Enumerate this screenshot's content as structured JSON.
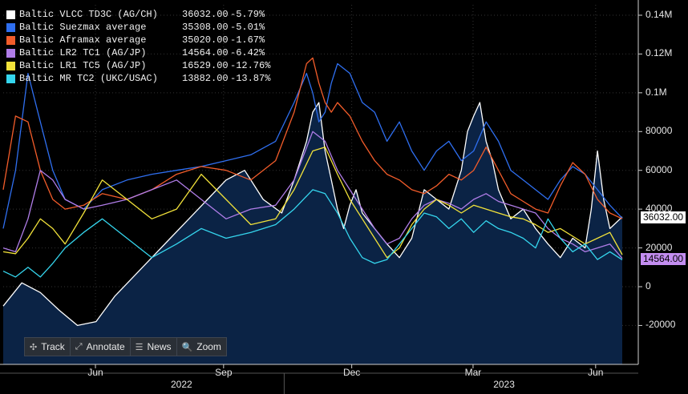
{
  "chart_data": {
    "type": "line",
    "title": "",
    "xlabel": "",
    "ylabel": "",
    "ylim": [
      -35000,
      150000
    ],
    "y_ticks": [
      {
        "value": 140000,
        "label": "0.14M"
      },
      {
        "value": 120000,
        "label": "0.12M"
      },
      {
        "value": 100000,
        "label": "0.1M"
      },
      {
        "value": 80000,
        "label": "80000"
      },
      {
        "value": 60000,
        "label": "60000"
      },
      {
        "value": 40000,
        "label": "40000"
      },
      {
        "value": 20000,
        "label": "20000"
      },
      {
        "value": 0,
        "label": "0"
      },
      {
        "value": -20000,
        "label": "-20000"
      }
    ],
    "x_ticks": [
      {
        "t": 0.149,
        "label": "Jun"
      },
      {
        "t": 0.356,
        "label": "Sep"
      },
      {
        "t": 0.563,
        "label": "Dec"
      },
      {
        "t": 0.759,
        "label": "Mar"
      },
      {
        "t": 0.957,
        "label": "Jun"
      }
    ],
    "year_labels": [
      {
        "t": 0.288,
        "label": "2022"
      },
      {
        "t": 0.809,
        "label": "2023"
      }
    ],
    "last_value_tags": [
      {
        "value": 36032.0,
        "label": "36032.00",
        "color": "#ffffff"
      },
      {
        "value": 14564.0,
        "label": "14564.00",
        "color": "#c38df0"
      }
    ],
    "series": [
      {
        "name": "Baltic VLCC TD3C (AG/CH)",
        "last": "36032.00",
        "change": "-5.79%",
        "color": "#ffffff",
        "fill": true,
        "x": [
          0,
          0.03,
          0.06,
          0.09,
          0.12,
          0.15,
          0.18,
          0.21,
          0.24,
          0.27,
          0.3,
          0.33,
          0.36,
          0.39,
          0.42,
          0.45,
          0.47,
          0.49,
          0.5,
          0.51,
          0.52,
          0.53,
          0.54,
          0.55,
          0.56,
          0.57,
          0.58,
          0.6,
          0.62,
          0.64,
          0.66,
          0.68,
          0.7,
          0.72,
          0.74,
          0.75,
          0.76,
          0.77,
          0.78,
          0.79,
          0.8,
          0.82,
          0.84,
          0.86,
          0.88,
          0.9,
          0.92,
          0.94,
          0.95,
          0.96,
          0.97,
          0.98,
          1
        ],
        "y": [
          -10000,
          2000,
          -3000,
          -12000,
          -20000,
          -18000,
          -5000,
          5000,
          15000,
          25000,
          35000,
          45000,
          55000,
          60000,
          45000,
          38000,
          55000,
          75000,
          90000,
          95000,
          70000,
          55000,
          40000,
          30000,
          42000,
          50000,
          38000,
          30000,
          22000,
          15000,
          25000,
          50000,
          45000,
          40000,
          60000,
          80000,
          88000,
          95000,
          75000,
          65000,
          50000,
          35000,
          40000,
          30000,
          22000,
          15000,
          25000,
          20000,
          40000,
          70000,
          45000,
          30000,
          36032
        ]
      },
      {
        "name": "Baltic Suezmax average",
        "last": "35308.00",
        "change": "-5.01%",
        "color": "#2f6ff0",
        "fill": false,
        "x": [
          0,
          0.02,
          0.04,
          0.06,
          0.08,
          0.1,
          0.13,
          0.16,
          0.2,
          0.24,
          0.28,
          0.32,
          0.36,
          0.4,
          0.44,
          0.47,
          0.49,
          0.5,
          0.51,
          0.52,
          0.53,
          0.54,
          0.56,
          0.58,
          0.6,
          0.62,
          0.64,
          0.66,
          0.68,
          0.7,
          0.72,
          0.74,
          0.76,
          0.78,
          0.8,
          0.82,
          0.84,
          0.86,
          0.88,
          0.9,
          0.92,
          0.94,
          0.96,
          0.98,
          1
        ],
        "y": [
          30000,
          60000,
          110000,
          85000,
          60000,
          45000,
          40000,
          50000,
          55000,
          58000,
          60000,
          62000,
          65000,
          68000,
          75000,
          95000,
          110000,
          100000,
          85000,
          90000,
          105000,
          115000,
          110000,
          95000,
          90000,
          75000,
          85000,
          70000,
          60000,
          70000,
          75000,
          65000,
          70000,
          85000,
          75000,
          60000,
          55000,
          50000,
          45000,
          55000,
          62000,
          58000,
          50000,
          42000,
          35308
        ]
      },
      {
        "name": "Baltic Aframax average",
        "last": "35020.00",
        "change": "-1.67%",
        "color": "#f25c2a",
        "fill": false,
        "x": [
          0,
          0.02,
          0.04,
          0.06,
          0.08,
          0.1,
          0.13,
          0.16,
          0.2,
          0.24,
          0.28,
          0.32,
          0.36,
          0.4,
          0.44,
          0.47,
          0.49,
          0.5,
          0.51,
          0.52,
          0.53,
          0.54,
          0.56,
          0.58,
          0.6,
          0.62,
          0.64,
          0.66,
          0.68,
          0.7,
          0.72,
          0.74,
          0.76,
          0.78,
          0.8,
          0.82,
          0.84,
          0.86,
          0.88,
          0.9,
          0.92,
          0.94,
          0.96,
          0.98,
          1
        ],
        "y": [
          50000,
          88000,
          85000,
          60000,
          45000,
          40000,
          42000,
          48000,
          45000,
          50000,
          58000,
          62000,
          60000,
          55000,
          65000,
          90000,
          115000,
          118000,
          105000,
          95000,
          90000,
          95000,
          88000,
          75000,
          65000,
          58000,
          55000,
          50000,
          48000,
          52000,
          58000,
          55000,
          60000,
          72000,
          60000,
          48000,
          44000,
          40000,
          38000,
          52000,
          64000,
          58000,
          45000,
          38000,
          35020
        ]
      },
      {
        "name": "Baltic LR2 TC1 (AG/JP)",
        "last": "14564.00",
        "change": "-6.42%",
        "color": "#b07de8",
        "fill": false,
        "x": [
          0,
          0.02,
          0.04,
          0.06,
          0.08,
          0.1,
          0.13,
          0.16,
          0.2,
          0.24,
          0.28,
          0.32,
          0.36,
          0.4,
          0.44,
          0.47,
          0.5,
          0.52,
          0.54,
          0.56,
          0.58,
          0.6,
          0.62,
          0.64,
          0.66,
          0.68,
          0.7,
          0.72,
          0.74,
          0.76,
          0.78,
          0.8,
          0.82,
          0.84,
          0.86,
          0.88,
          0.9,
          0.92,
          0.94,
          0.96,
          0.98,
          1
        ],
        "y": [
          20000,
          18000,
          35000,
          60000,
          55000,
          45000,
          40000,
          42000,
          45000,
          50000,
          55000,
          45000,
          35000,
          40000,
          42000,
          55000,
          80000,
          75000,
          60000,
          50000,
          40000,
          30000,
          22000,
          25000,
          35000,
          42000,
          45000,
          43000,
          40000,
          45000,
          48000,
          44000,
          42000,
          40000,
          38000,
          30000,
          25000,
          22000,
          18000,
          20000,
          22000,
          14564
        ]
      },
      {
        "name": "Baltic LR1 TC5 (AG/JP)",
        "last": "16529.00",
        "change": "-12.76%",
        "color": "#f2e23a",
        "fill": false,
        "x": [
          0,
          0.02,
          0.04,
          0.06,
          0.08,
          0.1,
          0.13,
          0.16,
          0.2,
          0.24,
          0.28,
          0.32,
          0.36,
          0.4,
          0.44,
          0.47,
          0.5,
          0.52,
          0.54,
          0.56,
          0.58,
          0.6,
          0.62,
          0.64,
          0.66,
          0.68,
          0.7,
          0.72,
          0.74,
          0.76,
          0.78,
          0.8,
          0.82,
          0.84,
          0.86,
          0.88,
          0.9,
          0.92,
          0.94,
          0.96,
          0.98,
          1
        ],
        "y": [
          18000,
          17000,
          25000,
          35000,
          30000,
          22000,
          38000,
          55000,
          45000,
          35000,
          40000,
          58000,
          45000,
          32000,
          35000,
          50000,
          70000,
          72000,
          58000,
          45000,
          35000,
          25000,
          15000,
          20000,
          32000,
          40000,
          45000,
          42000,
          38000,
          42000,
          40000,
          38000,
          36000,
          35000,
          32000,
          28000,
          30000,
          26000,
          22000,
          25000,
          28000,
          16529
        ]
      },
      {
        "name": "Baltic MR TC2 (UKC/USAC)",
        "last": "13882.00",
        "change": "-13.87%",
        "color": "#35d6ee",
        "fill": false,
        "x": [
          0,
          0.02,
          0.04,
          0.06,
          0.08,
          0.1,
          0.13,
          0.16,
          0.2,
          0.24,
          0.28,
          0.32,
          0.36,
          0.4,
          0.44,
          0.47,
          0.5,
          0.52,
          0.54,
          0.56,
          0.58,
          0.6,
          0.62,
          0.64,
          0.66,
          0.68,
          0.7,
          0.72,
          0.74,
          0.76,
          0.78,
          0.8,
          0.82,
          0.84,
          0.86,
          0.88,
          0.9,
          0.92,
          0.94,
          0.96,
          0.98,
          1
        ],
        "y": [
          8000,
          5000,
          10000,
          5000,
          12000,
          20000,
          28000,
          35000,
          25000,
          15000,
          22000,
          30000,
          25000,
          28000,
          32000,
          40000,
          50000,
          48000,
          38000,
          25000,
          15000,
          12000,
          14000,
          22000,
          30000,
          38000,
          36000,
          30000,
          35000,
          28000,
          34000,
          30000,
          28000,
          25000,
          20000,
          35000,
          25000,
          18000,
          22000,
          14000,
          18000,
          13882
        ]
      }
    ]
  },
  "toolbar": {
    "track": "Track",
    "annotate": "Annotate",
    "news": "News",
    "zoom": "Zoom",
    "track_icon": "✣",
    "annotate_icon": "⤢",
    "news_icon": "☰",
    "zoom_icon": "🔍"
  }
}
